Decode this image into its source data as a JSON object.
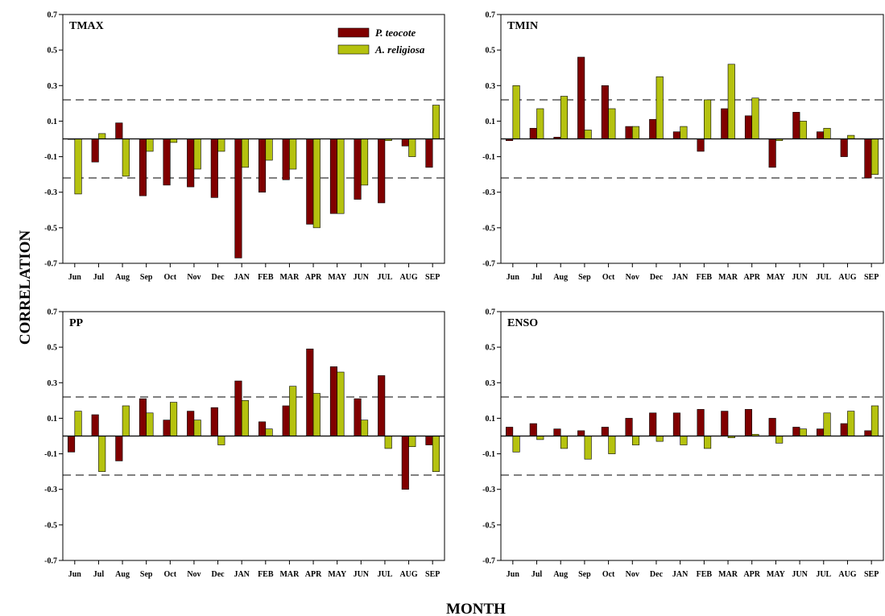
{
  "chart_data": {
    "type": "bar",
    "x_title": "MONTH",
    "y_title": "CORRELATION",
    "ylim": [
      -0.7,
      0.7
    ],
    "yticks": [
      "0.7",
      "0.5",
      "0.3",
      "0.1",
      "-0.1",
      "-0.3",
      "-0.5",
      "-0.7"
    ],
    "significance_level": 0.22,
    "categories": [
      "Jun",
      "Jul",
      "Aug",
      "Sep",
      "Oct",
      "Nov",
      "Dec",
      "JAN",
      "FEB",
      "MAR",
      "APR",
      "MAY",
      "JUN",
      "JUL",
      "AUG",
      "SEP"
    ],
    "legend": {
      "placement": "top-right of first panel",
      "entries": [
        {
          "label": "P. teocote",
          "color": "#800000"
        },
        {
          "label": "A. religiosa",
          "color": "#b5c20f"
        }
      ]
    },
    "panels": [
      {
        "label": "TMAX",
        "series": [
          {
            "name": "P. teocote",
            "values": [
              0.0,
              -0.13,
              0.09,
              -0.32,
              -0.26,
              -0.27,
              -0.33,
              -0.67,
              -0.3,
              -0.23,
              -0.48,
              -0.42,
              -0.34,
              -0.36,
              -0.04,
              -0.16
            ]
          },
          {
            "name": "A. religiosa",
            "values": [
              -0.31,
              0.03,
              -0.21,
              -0.07,
              -0.02,
              -0.17,
              -0.07,
              -0.16,
              -0.12,
              -0.17,
              -0.5,
              -0.42,
              -0.26,
              -0.01,
              -0.1,
              0.19
            ]
          }
        ]
      },
      {
        "label": "TMIN",
        "series": [
          {
            "name": "P. teocote",
            "values": [
              -0.01,
              0.06,
              0.01,
              0.46,
              0.3,
              0.07,
              0.11,
              0.04,
              -0.07,
              0.17,
              0.13,
              -0.16,
              0.15,
              0.04,
              -0.1,
              -0.22
            ]
          },
          {
            "name": "A. religiosa",
            "values": [
              0.3,
              0.17,
              0.24,
              0.05,
              0.17,
              0.07,
              0.35,
              0.07,
              0.22,
              0.42,
              0.23,
              -0.01,
              0.1,
              0.06,
              0.02,
              -0.2
            ]
          }
        ]
      },
      {
        "label": "PP",
        "series": [
          {
            "name": "P. teocote",
            "values": [
              -0.09,
              0.12,
              -0.14,
              0.21,
              0.09,
              0.14,
              0.16,
              0.31,
              0.08,
              0.17,
              0.49,
              0.39,
              0.21,
              0.34,
              -0.3,
              -0.05
            ]
          },
          {
            "name": "A. religiosa",
            "values": [
              0.14,
              -0.2,
              0.17,
              0.13,
              0.19,
              0.09,
              -0.05,
              0.2,
              0.04,
              0.28,
              0.24,
              0.36,
              0.09,
              -0.07,
              -0.06,
              -0.2
            ]
          }
        ]
      },
      {
        "label": "ENSO",
        "series": [
          {
            "name": "P. teocote",
            "values": [
              0.05,
              0.07,
              0.04,
              0.03,
              0.05,
              0.1,
              0.13,
              0.13,
              0.15,
              0.14,
              0.15,
              0.1,
              0.05,
              0.04,
              0.07,
              0.03
            ]
          },
          {
            "name": "A. religiosa",
            "values": [
              -0.09,
              -0.02,
              -0.07,
              -0.13,
              -0.1,
              -0.05,
              -0.03,
              -0.05,
              -0.07,
              -0.01,
              0.01,
              -0.04,
              0.04,
              0.13,
              0.14,
              0.17
            ]
          }
        ]
      }
    ]
  }
}
